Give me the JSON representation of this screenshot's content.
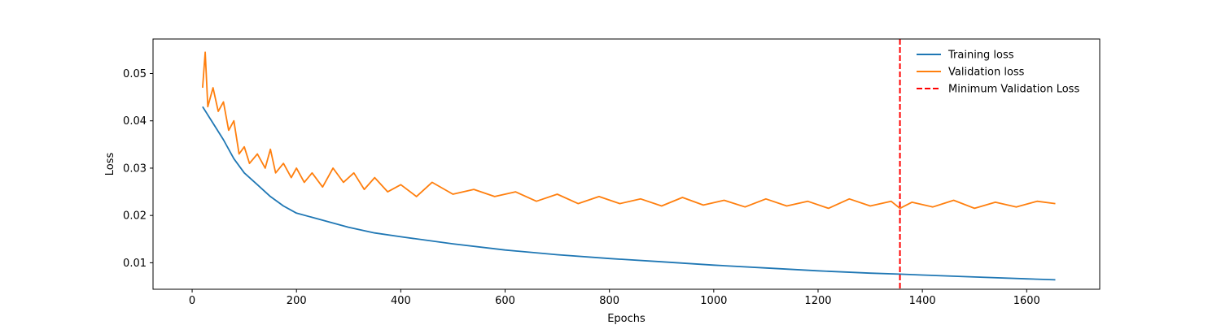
{
  "chart_data": {
    "type": "line",
    "title": "",
    "xlabel": "Epochs",
    "ylabel": "Loss",
    "xlim": [
      -75,
      1740
    ],
    "ylim": [
      0.0044,
      0.0573
    ],
    "xticks": [
      0,
      200,
      400,
      600,
      800,
      1000,
      1200,
      1400,
      1600
    ],
    "yticks": [
      0.01,
      0.02,
      0.03,
      0.04,
      0.05
    ],
    "ytick_labels": [
      "0.01",
      "0.02",
      "0.03",
      "0.04",
      "0.05"
    ],
    "grid": false,
    "legend_position": "top-right",
    "series": [
      {
        "name": "Training loss",
        "color": "#1f77b4",
        "style": "solid",
        "x": [
          20,
          40,
          60,
          80,
          100,
          125,
          150,
          175,
          200,
          250,
          300,
          350,
          400,
          500,
          600,
          700,
          800,
          900,
          1000,
          1100,
          1200,
          1300,
          1357,
          1400,
          1500,
          1600,
          1655
        ],
        "y": [
          0.043,
          0.0395,
          0.036,
          0.032,
          0.029,
          0.0265,
          0.024,
          0.022,
          0.0205,
          0.019,
          0.0175,
          0.0163,
          0.0155,
          0.014,
          0.0127,
          0.0117,
          0.0109,
          0.0102,
          0.0095,
          0.0089,
          0.0083,
          0.0078,
          0.0076,
          0.0074,
          0.007,
          0.0066,
          0.0064
        ]
      },
      {
        "name": "Validation loss",
        "color": "#ff7f0e",
        "style": "solid",
        "x": [
          20,
          25,
          30,
          40,
          50,
          60,
          70,
          80,
          90,
          100,
          110,
          125,
          140,
          150,
          160,
          175,
          190,
          200,
          215,
          230,
          250,
          270,
          290,
          310,
          330,
          350,
          375,
          400,
          430,
          460,
          500,
          540,
          580,
          620,
          660,
          700,
          740,
          780,
          820,
          860,
          900,
          940,
          980,
          1020,
          1060,
          1100,
          1140,
          1180,
          1220,
          1260,
          1300,
          1340,
          1357,
          1380,
          1420,
          1460,
          1500,
          1540,
          1580,
          1620,
          1655
        ],
        "y": [
          0.047,
          0.0545,
          0.043,
          0.047,
          0.042,
          0.044,
          0.038,
          0.04,
          0.033,
          0.0345,
          0.031,
          0.033,
          0.03,
          0.034,
          0.029,
          0.031,
          0.028,
          0.03,
          0.027,
          0.029,
          0.026,
          0.03,
          0.027,
          0.029,
          0.0255,
          0.028,
          0.025,
          0.0265,
          0.024,
          0.027,
          0.0245,
          0.0255,
          0.024,
          0.025,
          0.023,
          0.0245,
          0.0225,
          0.024,
          0.0225,
          0.0235,
          0.022,
          0.0238,
          0.0222,
          0.0232,
          0.0218,
          0.0235,
          0.022,
          0.023,
          0.0215,
          0.0235,
          0.022,
          0.023,
          0.0215,
          0.0228,
          0.0218,
          0.0232,
          0.0215,
          0.0228,
          0.0218,
          0.023,
          0.0225
        ]
      },
      {
        "name": "Minimum Validation Loss",
        "color": "#ff0000",
        "style": "dashed",
        "vline_x": 1357
      }
    ]
  }
}
